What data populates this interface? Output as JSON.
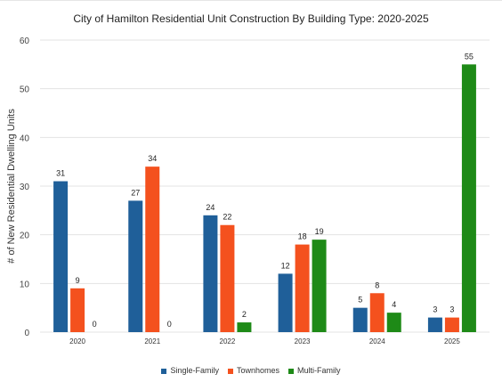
{
  "chart_data": {
    "type": "bar",
    "title": "City of Hamilton Residential Unit Construction By Building Type: 2020-2025",
    "xlabel": "",
    "ylabel": "# of New Residential Dwelling Units",
    "ylim": [
      0,
      60
    ],
    "yticks": [
      0,
      10,
      20,
      30,
      40,
      50,
      60
    ],
    "categories": [
      "2020",
      "2021",
      "2022",
      "2023",
      "2024",
      "2025"
    ],
    "series": [
      {
        "name": "Single-Family",
        "color": "#1f5f99",
        "values": [
          31,
          27,
          24,
          12,
          5,
          3
        ]
      },
      {
        "name": "Townhomes",
        "color": "#f4511e",
        "values": [
          9,
          34,
          22,
          18,
          8,
          3
        ]
      },
      {
        "name": "Multi-Family",
        "color": "#1e8a17",
        "values": [
          0,
          0,
          2,
          19,
          4,
          55
        ]
      }
    ],
    "grid": true,
    "legend": "bottom"
  }
}
